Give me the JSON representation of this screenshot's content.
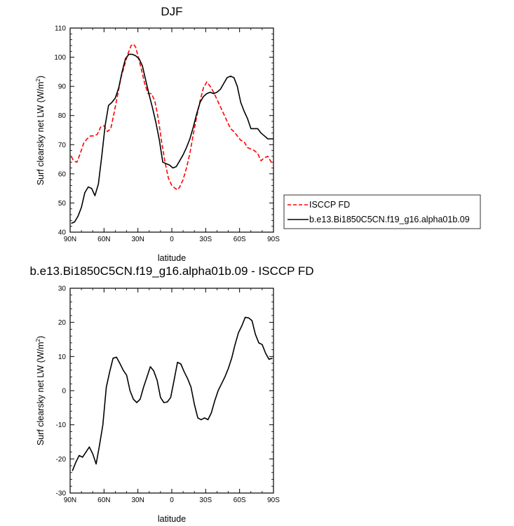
{
  "chart_data": [
    {
      "type": "line",
      "title": "DJF",
      "xlabel": "latitude",
      "ylabel": "Surf clearsky net LW (W/m",
      "ylabel_sup": "2",
      "ylabel_close": ")",
      "ylim": [
        40,
        110
      ],
      "xlim": [
        -90,
        90
      ],
      "x_direction": "90N on left to 90S on right (x = latitude, south positive)",
      "yticks": [
        40,
        50,
        60,
        70,
        80,
        90,
        100,
        110
      ],
      "xticks": [
        {
          "value": -90,
          "label": "90N"
        },
        {
          "value": -60,
          "label": "60N"
        },
        {
          "value": -30,
          "label": "30N"
        },
        {
          "value": 0,
          "label": "0"
        },
        {
          "value": 30,
          "label": "30S"
        },
        {
          "value": 60,
          "label": "60S"
        },
        {
          "value": 90,
          "label": "90S"
        }
      ],
      "legend": {
        "placement": "right, outside plot",
        "entries": [
          {
            "label": "ISCCP FD",
            "color": "#ff0000",
            "dash": "dashed"
          },
          {
            "label": "b.e13.Bi1850C5CN.f19_g16.alpha01b.09",
            "color": "#000000",
            "dash": "solid"
          }
        ]
      },
      "series": [
        {
          "name": "ISCCP FD",
          "color": "#ff0000",
          "dash": "dashed",
          "x": [
            -89,
            -87,
            -84,
            -81,
            -78,
            -75,
            -72,
            -69,
            -66,
            -63,
            -60,
            -57,
            -54,
            -51,
            -48,
            -45,
            -42,
            -39,
            -36,
            -34,
            -32,
            -30,
            -27,
            -24,
            -21,
            -18,
            -15,
            -12,
            -9,
            -6,
            -3,
            0,
            3,
            5,
            7,
            10,
            13,
            16,
            19,
            22,
            25,
            28,
            31,
            34,
            37,
            40,
            43,
            46,
            49,
            52,
            55,
            58,
            61,
            64,
            67,
            70,
            73,
            76,
            79,
            82,
            85,
            88,
            90
          ],
          "values": [
            66,
            64.5,
            64,
            67,
            70.5,
            72,
            73,
            73,
            73.5,
            76,
            76.5,
            74.5,
            75.5,
            81,
            87,
            93,
            97,
            101,
            104,
            104.5,
            103.5,
            100.5,
            96,
            91,
            87.5,
            87.5,
            85,
            79,
            71,
            64,
            58.5,
            56,
            55,
            54.5,
            55.5,
            58,
            62,
            67,
            73.5,
            79.5,
            85,
            89.5,
            91.5,
            90,
            88,
            85.5,
            83,
            80.5,
            78,
            75.5,
            74.5,
            73,
            71.5,
            71,
            69,
            68.5,
            68,
            67,
            64.5,
            65.5,
            66,
            64,
            63
          ]
        },
        {
          "name": "b.e13.Bi1850C5CN.f19_g16.alpha01b.09",
          "color": "#000000",
          "dash": "solid",
          "x": [
            -89,
            -86,
            -83,
            -80,
            -77,
            -74,
            -71,
            -68,
            -65,
            -62,
            -59,
            -56,
            -53,
            -50,
            -47,
            -44,
            -41,
            -38,
            -35,
            -32,
            -29,
            -26,
            -23,
            -20,
            -17,
            -14,
            -11,
            -8,
            -5,
            -2,
            1,
            4,
            7,
            10,
            13,
            16,
            19,
            22,
            25,
            28,
            31,
            34,
            37,
            40,
            43,
            46,
            49,
            52,
            55,
            58,
            61,
            64,
            67,
            70,
            73,
            76,
            79,
            82,
            85,
            88,
            90
          ],
          "values": [
            43,
            43.5,
            45.5,
            48.5,
            53.5,
            55.5,
            55,
            52.5,
            56.5,
            66,
            76.5,
            83.5,
            84.5,
            86,
            89.5,
            95,
            99.5,
            101,
            101,
            100.5,
            99.5,
            97,
            92,
            87,
            82.5,
            77.5,
            71.5,
            64,
            63.5,
            63,
            62,
            62.5,
            64.5,
            66.5,
            69,
            72,
            76,
            80.5,
            84.5,
            86.5,
            87.5,
            88,
            87.5,
            88,
            89,
            91,
            93,
            93.5,
            93,
            90,
            84.5,
            81.5,
            79,
            75.5,
            75.5,
            75.5,
            74,
            73,
            72,
            72,
            72
          ]
        }
      ]
    },
    {
      "type": "line",
      "title": "b.e13.Bi1850C5CN.f19_g16.alpha01b.09 - ISCCP FD",
      "xlabel": "latitude",
      "ylabel": "Surf clearsky net LW (W/m",
      "ylabel_sup": "2",
      "ylabel_close": ")",
      "ylim": [
        -30,
        30
      ],
      "xlim": [
        -90,
        90
      ],
      "yticks": [
        -30,
        -20,
        -10,
        0,
        10,
        20,
        30
      ],
      "xticks": [
        {
          "value": -90,
          "label": "90N"
        },
        {
          "value": -60,
          "label": "60N"
        },
        {
          "value": -30,
          "label": "30N"
        },
        {
          "value": 0,
          "label": "0"
        },
        {
          "value": 30,
          "label": "30S"
        },
        {
          "value": 60,
          "label": "60S"
        },
        {
          "value": 90,
          "label": "90S"
        }
      ],
      "series": [
        {
          "color": "#000000",
          "dash": "solid",
          "x": [
            -88,
            -85,
            -82,
            -79,
            -76,
            -73,
            -70,
            -67,
            -64,
            -61,
            -58,
            -55,
            -52,
            -49,
            -46,
            -43,
            -40,
            -37,
            -34,
            -31,
            -28,
            -25,
            -22,
            -19,
            -16,
            -13,
            -10,
            -7,
            -4,
            -1,
            2,
            5,
            8,
            11,
            14,
            17,
            20,
            23,
            26,
            29,
            32,
            35,
            38,
            41,
            44,
            47,
            50,
            53,
            56,
            59,
            62,
            65,
            68,
            71,
            74,
            77,
            80,
            83,
            86,
            89
          ],
          "values": [
            -23.5,
            -21,
            -19,
            -19.5,
            -18,
            -16.5,
            -18.5,
            -21.5,
            -16,
            -10,
            1,
            5.5,
            9.5,
            9.8,
            8,
            6,
            4.5,
            0,
            -2.5,
            -3.5,
            -2.5,
            1,
            4,
            7,
            5.8,
            3,
            -2,
            -3.5,
            -3.3,
            -2,
            3,
            8.3,
            7.8,
            5.5,
            3.5,
            1,
            -4,
            -8,
            -8.5,
            -8,
            -8.5,
            -6.5,
            -3,
            0,
            2,
            4,
            6.5,
            9.5,
            13.5,
            17,
            19,
            21.5,
            21.3,
            20.5,
            16.5,
            14,
            13.5,
            11,
            9.2,
            9.5
          ]
        }
      ]
    }
  ]
}
